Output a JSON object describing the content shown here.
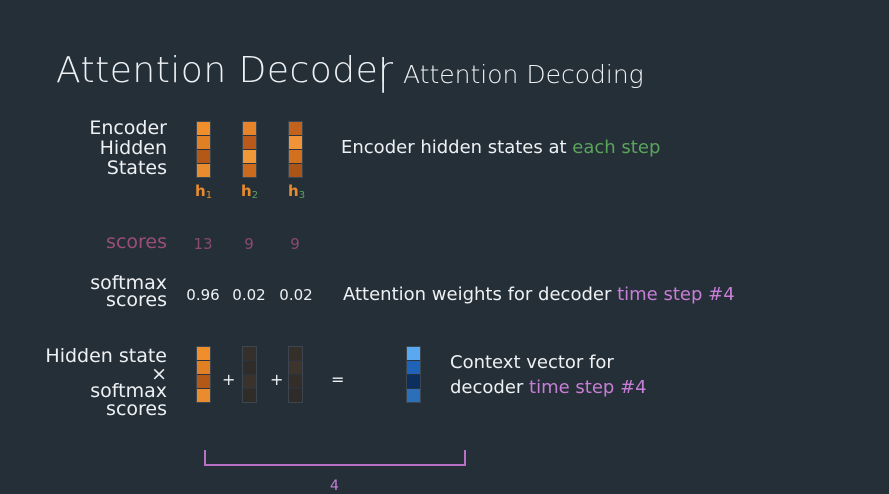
{
  "title": {
    "main": "Attention Decoder",
    "separator": "|",
    "sub": "Attention Decoding"
  },
  "encoder": {
    "label_lines": [
      "Encoder",
      "Hidden",
      "States"
    ],
    "states": [
      {
        "label": "h",
        "sub": "1",
        "label_color": "#e88a2e",
        "sub_color": "#e88a2e",
        "cells": [
          "#ef8e2a",
          "#e07f24",
          "#b45817",
          "#e98c2d"
        ]
      },
      {
        "label": "h",
        "sub": "2",
        "label_color": "#e88a2e",
        "sub_color": "#5aa45c",
        "cells": [
          "#e5842a",
          "#b9591a",
          "#f19838",
          "#cc6a1e"
        ]
      },
      {
        "label": "h",
        "sub": "3",
        "label_color": "#e88a2e",
        "sub_color": "#5aa45c",
        "cells": [
          "#c1621d",
          "#f09437",
          "#d2701f",
          "#aa5418"
        ]
      }
    ],
    "description": {
      "text": "Encoder hidden states at ",
      "highlight": "each step"
    }
  },
  "scores": {
    "label": "scores",
    "values": [
      "13",
      "9",
      "9"
    ]
  },
  "softmax": {
    "label_lines": [
      "softmax",
      "scores"
    ],
    "values": [
      "0.96",
      "0.02",
      "0.02"
    ],
    "description": {
      "text": "Attention weights for decoder ",
      "highlight": "time step #4"
    }
  },
  "weighted": {
    "label_lines": [
      "Hidden state",
      "×",
      "softmax",
      "scores"
    ],
    "vectors": [
      [
        "#ef8e2a",
        "#e07f24",
        "#b45817",
        "#e98c2d"
      ],
      [
        "#35302c",
        "#302c29",
        "#3a332d",
        "#302c28"
      ],
      [
        "#352f2a",
        "#3c342d",
        "#332e2a",
        "#2f2b28"
      ]
    ],
    "ops": [
      "+",
      "+",
      "="
    ],
    "context_vector": [
      "#5aa8f0",
      "#1f63b6",
      "#0c2f5e",
      "#2a6fb8"
    ],
    "description": {
      "line1": "Context vector for",
      "line2_text": "decoder ",
      "line2_highlight": "time step #4"
    }
  },
  "bracket_label": "4"
}
